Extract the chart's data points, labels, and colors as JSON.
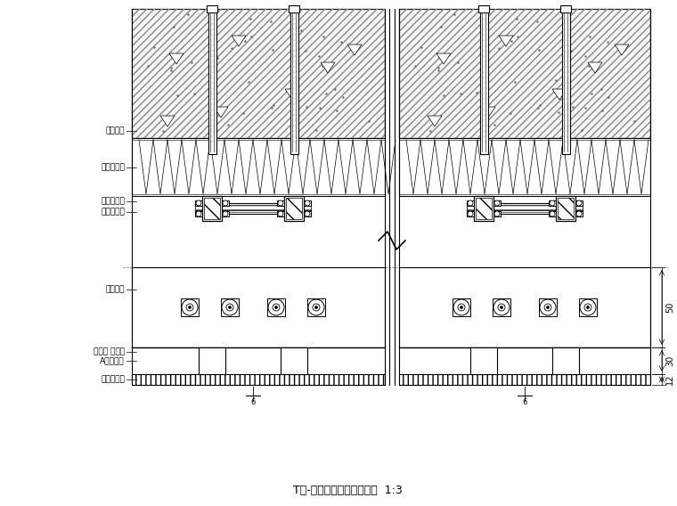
{
  "title": "T型-陶瓷板干挂横剖节点图  1:3",
  "labels_left": [
    "光平缝隙",
    "保温岩棉板",
    "镀锌钢角码",
    "幕墙竖龙骨",
    "连接角码",
    "不锈钢 整套件",
    "A型锚固件",
    "陶瓷薄板材"
  ],
  "dim_labels": [
    "50",
    "30",
    "12"
  ],
  "bg_color": "#ffffff",
  "line_color": "#000000",
  "title_fontsize": 9,
  "label_fontsize": 6.5
}
